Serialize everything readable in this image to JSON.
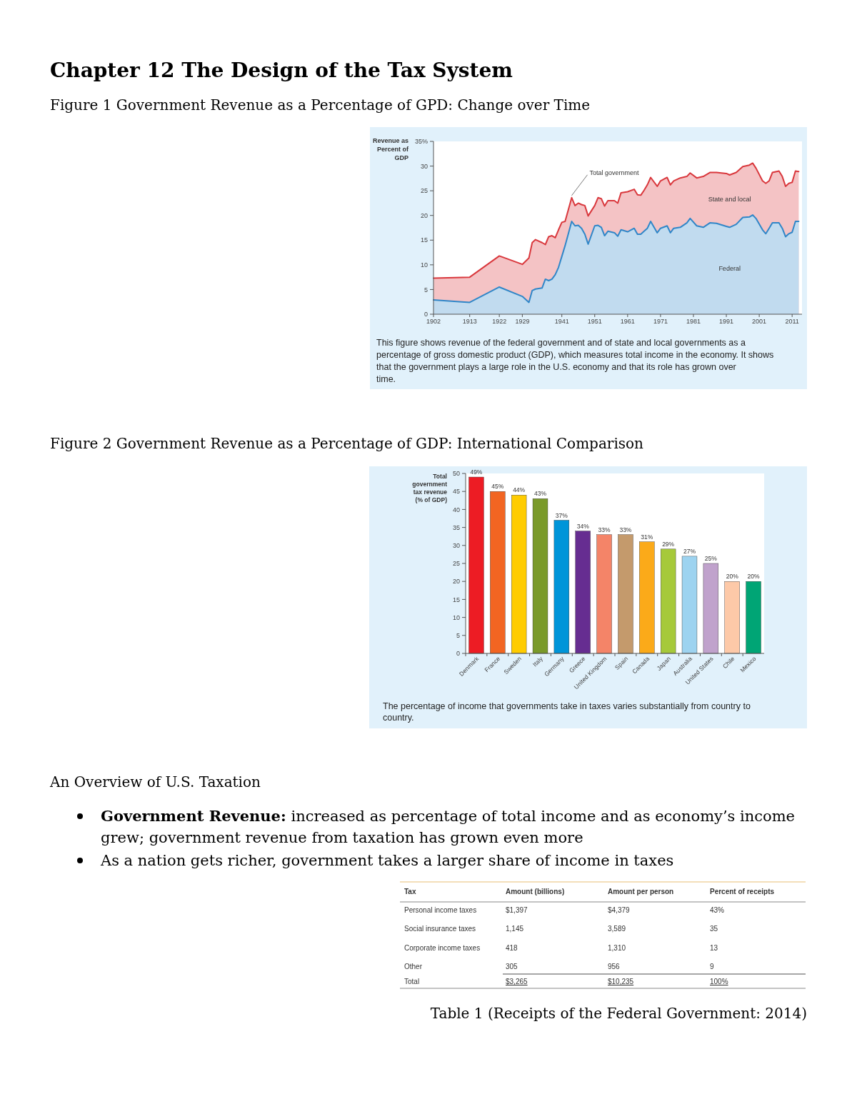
{
  "chart_data": [
    {
      "type": "area",
      "title": "Chapter 12 The Design of the Tax System",
      "subtitle": "Figure 1 Government Revenue as a Percentage of GPD: Change over Time",
      "ylabel": "Revenue as Percent of GDP",
      "x": [
        1902,
        1913,
        1922,
        1929,
        1931,
        1932,
        1933,
        1935,
        1936,
        1937,
        1938,
        1939,
        1940,
        1941,
        1942,
        1944,
        1945,
        1946,
        1947,
        1948,
        1949,
        1951,
        1952,
        1953,
        1954,
        1955,
        1957,
        1958,
        1959,
        1961,
        1963,
        1964,
        1965,
        1966,
        1967,
        1968,
        1970,
        1971,
        1973,
        1974,
        1975,
        1977,
        1979,
        1980,
        1982,
        1984,
        1986,
        1988,
        1991,
        1992,
        1994,
        1996,
        1998,
        1999,
        2000,
        2002,
        2003,
        2004,
        2005,
        2007,
        2008,
        2009,
        2010,
        2011,
        2012,
        2013
      ],
      "series": [
        {
          "name": "Total government",
          "color": "#d9373c",
          "values": [
            7.3,
            7.5,
            11.8,
            10.1,
            11.4,
            14.5,
            15.1,
            14.5,
            14.1,
            15.7,
            15.9,
            15.5,
            17.1,
            18.6,
            18.8,
            23.6,
            22.0,
            22.5,
            22.2,
            22.0,
            19.9,
            22.0,
            23.6,
            23.4,
            21.9,
            23.0,
            23.0,
            22.5,
            24.6,
            24.8,
            25.3,
            24.2,
            24.1,
            25.1,
            26.2,
            27.7,
            25.9,
            27.0,
            27.7,
            26.2,
            27.0,
            27.6,
            27.9,
            28.6,
            27.6,
            27.9,
            28.7,
            28.7,
            28.5,
            28.2,
            28.7,
            29.9,
            30.2,
            30.6,
            29.6,
            27.0,
            26.5,
            27.0,
            28.7,
            29.0,
            27.9,
            25.9,
            26.5,
            26.7,
            29.0,
            28.9
          ]
        },
        {
          "name": "Federal",
          "color": "#2f86c8",
          "values": [
            2.9,
            2.4,
            5.5,
            3.6,
            2.4,
            4.8,
            5.1,
            5.3,
            7.1,
            6.8,
            7.1,
            8.0,
            9.5,
            11.7,
            13.9,
            18.8,
            17.9,
            18.0,
            17.4,
            16.2,
            14.2,
            17.9,
            18.0,
            17.6,
            15.9,
            16.8,
            16.5,
            15.8,
            17.1,
            16.7,
            17.4,
            16.2,
            16.2,
            16.8,
            17.4,
            18.8,
            16.5,
            17.4,
            17.9,
            16.5,
            17.4,
            17.6,
            18.5,
            19.4,
            17.9,
            17.6,
            18.5,
            18.4,
            17.8,
            17.6,
            18.2,
            19.6,
            19.7,
            20.1,
            19.4,
            17.1,
            16.3,
            17.4,
            18.5,
            18.5,
            17.4,
            15.7,
            16.3,
            16.6,
            18.8,
            18.8
          ]
        }
      ],
      "xlim": [
        1902,
        2014
      ],
      "xticks": [
        1902,
        1913,
        1922,
        1929,
        1941,
        1951,
        1961,
        1971,
        1981,
        1991,
        2001,
        2011
      ],
      "ylim": [
        0,
        35
      ],
      "yticks": [
        0,
        5,
        10,
        15,
        20,
        25,
        30,
        {
          "value": 35,
          "label": "35%"
        }
      ],
      "annotations": [
        "State and local",
        "This figure shows revenue of the federal government and of state and local governments as a percentage of gross domestic product (GDP), which measures total income in the economy. It shows that the government plays a large role in the U.S. economy and that its role has grown over time."
      ]
    },
    {
      "type": "bar",
      "title": "Figure 2 Government Revenue as a Percentage of GDP: International Comparison",
      "ylabel": "Total government tax revenue (% of GDP)",
      "categories": [
        "Denmark",
        "France",
        "Sweden",
        "Italy",
        "Germany",
        "Greece",
        "United Kingdom",
        "Spain",
        "Canada",
        "Japan",
        "Australia",
        "United States",
        "Chile",
        "Mexico"
      ],
      "values": [
        49,
        45,
        44,
        43,
        37,
        34,
        33,
        33,
        31,
        29,
        27,
        25,
        20,
        20
      ],
      "value_labels": [
        "49%",
        "45%",
        "44%",
        "43%",
        "37%",
        "34%",
        "33%",
        "33%",
        "31%",
        "29%",
        "27%",
        "25%",
        "20%",
        "20%"
      ],
      "colors": [
        "#ed1c24",
        "#f26522",
        "#ffcc00",
        "#7a9a2a",
        "#0095d9",
        "#662d91",
        "#f48468",
        "#c49a6c",
        "#fbaa19",
        "#a6c93a",
        "#9dd3f0",
        "#c0a2cc",
        "#fdc9a8",
        "#00a575"
      ],
      "ylim": [
        0,
        50
      ],
      "yticks": [
        0,
        5,
        10,
        15,
        20,
        25,
        30,
        35,
        40,
        45,
        50
      ],
      "annotations": [
        "The percentage of income that governments take in taxes varies substantially from country to country."
      ]
    },
    {
      "type": "other",
      "title": "An Overview of U.S. Taxation",
      "annotations": [
        "Government Revenue: increased as percentage of total income and as economy’s income grew; government revenue from taxation has grown even more",
        "As a nation gets richer, government takes a larger share of income in taxes",
        "Tax",
        "Amount (billions)",
        "Amount per person",
        "Percent of receipts",
        "Personal income taxes",
        "$1,397",
        "$4,379",
        "43%",
        "Social insurance taxes",
        "1,145",
        "3,589",
        "35",
        "Corporate income taxes",
        "418",
        "1,310",
        "13",
        "Other",
        "305",
        "956",
        "9",
        "Total",
        "$3,265",
        "$10,235",
        "100%",
        "Table 1 (Receipts of the Federal Government: 2014)"
      ]
    }
  ]
}
